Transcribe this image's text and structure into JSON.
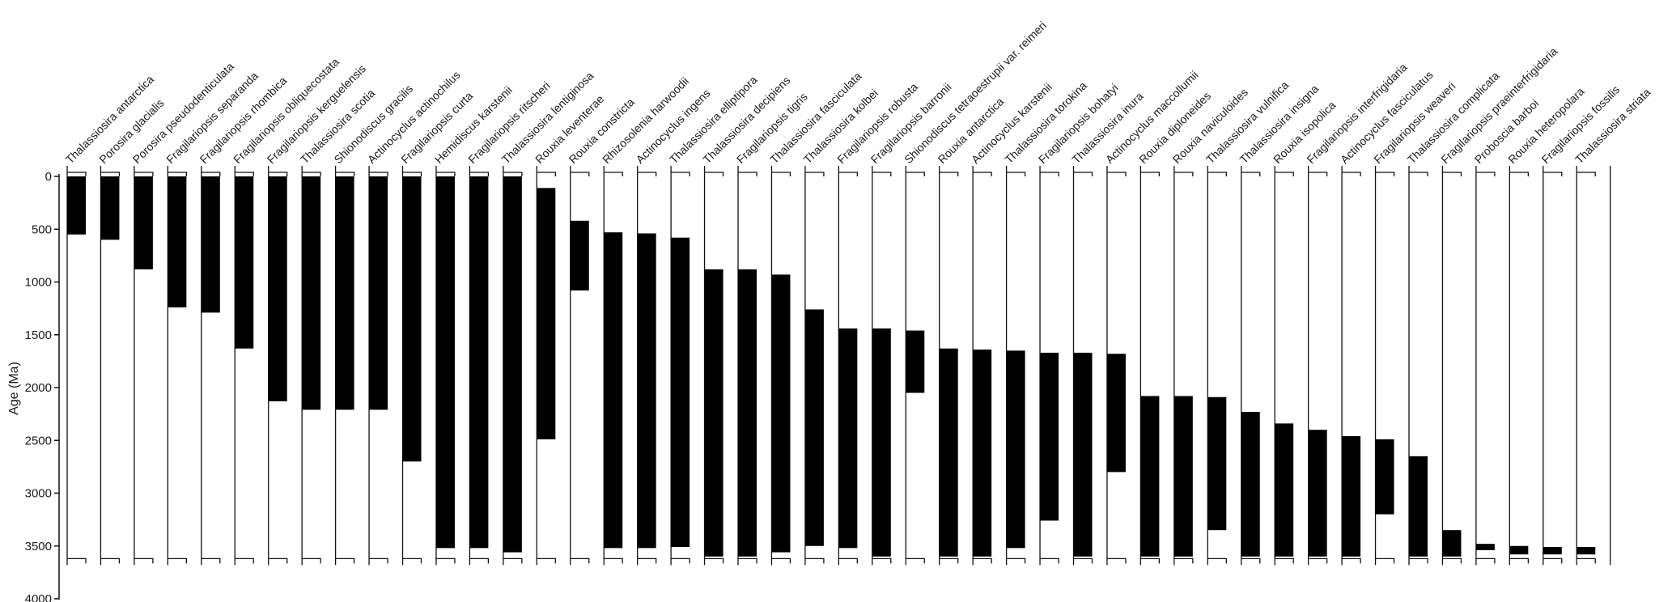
{
  "chart_data": {
    "type": "range",
    "title": "",
    "xlabel": "",
    "ylabel": "Age (Ma)",
    "ylim": [
      0,
      4000
    ],
    "y_inverted": true,
    "yticks": [
      0,
      500,
      1000,
      1500,
      2000,
      2500,
      3000,
      3500,
      4000
    ],
    "grid": false,
    "legend": "none",
    "bar_color": "#000000",
    "section_range": [
      0,
      3620
    ],
    "taxa": [
      {
        "name": "Thalassiosira antarctica",
        "top": 0,
        "base": 550
      },
      {
        "name": "Porosira glacialis",
        "top": 0,
        "base": 600
      },
      {
        "name": "Porosira pseudodenticulata",
        "top": 0,
        "base": 880
      },
      {
        "name": "Fragilariopsis separanda",
        "top": 0,
        "base": 1240
      },
      {
        "name": "Fragilariopsis rhombica",
        "top": 0,
        "base": 1290
      },
      {
        "name": "Fragilariopsis obliquecostata",
        "top": 0,
        "base": 1630
      },
      {
        "name": "Fragilariopsis kerguelensis",
        "top": 0,
        "base": 2130
      },
      {
        "name": "Thalassiosira scotia",
        "top": 0,
        "base": 2210
      },
      {
        "name": "Shionodiscus gracilis",
        "top": 0,
        "base": 2210
      },
      {
        "name": "Actinocyclus actinochilus",
        "top": 0,
        "base": 2210
      },
      {
        "name": "Fragilariopsis curta",
        "top": 0,
        "base": 2700
      },
      {
        "name": "Hemidiscus karstenii",
        "top": 0,
        "base": 3520
      },
      {
        "name": "Fragilariopsis ritscheri",
        "top": 0,
        "base": 3520
      },
      {
        "name": "Thalassiosira lentiginosa",
        "top": 0,
        "base": 3560
      },
      {
        "name": "Rouxia leventerae",
        "top": 110,
        "base": 2490
      },
      {
        "name": "Rouxia constricta",
        "top": 420,
        "base": 1080
      },
      {
        "name": "Rhizosolenia harwoodii",
        "top": 530,
        "base": 3520
      },
      {
        "name": "Actinocyclus ingens",
        "top": 540,
        "base": 3520
      },
      {
        "name": "Thalassiosira elliptipora",
        "top": 580,
        "base": 3510
      },
      {
        "name": "Thalassiosira decipiens",
        "top": 880,
        "base": 3600
      },
      {
        "name": "Fragilariopsis tigris",
        "top": 880,
        "base": 3600
      },
      {
        "name": "Thalassiosira fasciculata",
        "top": 930,
        "base": 3560
      },
      {
        "name": "Thalassiosira kolbei",
        "top": 1260,
        "base": 3500
      },
      {
        "name": "Fragilariopsis robusta",
        "top": 1440,
        "base": 3520
      },
      {
        "name": "Fragilariopsis barronii",
        "top": 1440,
        "base": 3600
      },
      {
        "name": "Shionodiscus tetraoestrupii var. reimeri",
        "top": 1460,
        "base": 2050
      },
      {
        "name": "Rouxia antarctica",
        "top": 1630,
        "base": 3600
      },
      {
        "name": "Actinocyclus karstenii",
        "top": 1640,
        "base": 3600
      },
      {
        "name": "Thalassiosira torokina",
        "top": 1650,
        "base": 3520
      },
      {
        "name": "Fragilariopsis bohatyi",
        "top": 1670,
        "base": 3260
      },
      {
        "name": "Thalassiosira inura",
        "top": 1670,
        "base": 3600
      },
      {
        "name": "Actinocyclus maccollumii",
        "top": 1680,
        "base": 2800
      },
      {
        "name": "Rouxia diploneides",
        "top": 2080,
        "base": 3600
      },
      {
        "name": "Rouxia naviculoides",
        "top": 2080,
        "base": 3600
      },
      {
        "name": "Thalassiosira vulnifica",
        "top": 2090,
        "base": 3350
      },
      {
        "name": "Thalassiosira insigna",
        "top": 2230,
        "base": 3600
      },
      {
        "name": "Rouxia isopolica",
        "top": 2340,
        "base": 3600
      },
      {
        "name": "Fragilariopsis interfrigidaria",
        "top": 2400,
        "base": 3600
      },
      {
        "name": "Actinocyclus fasciculatus",
        "top": 2460,
        "base": 3600
      },
      {
        "name": "Fragilariopsis weaveri",
        "top": 2490,
        "base": 3200
      },
      {
        "name": "Thalassiosira complicata",
        "top": 2650,
        "base": 3600
      },
      {
        "name": "Fragilariopsis praeinterfrigidaria",
        "top": 3350,
        "base": 3600
      },
      {
        "name": "Proboscia barboi",
        "top": 3480,
        "base": 3540
      },
      {
        "name": "Rouxia heteropolara",
        "top": 3500,
        "base": 3580
      },
      {
        "name": "Fragilariopsis fossilis",
        "top": 3510,
        "base": 3580
      },
      {
        "name": "Thalassiosira striata",
        "top": 3510,
        "base": 3580
      }
    ]
  }
}
